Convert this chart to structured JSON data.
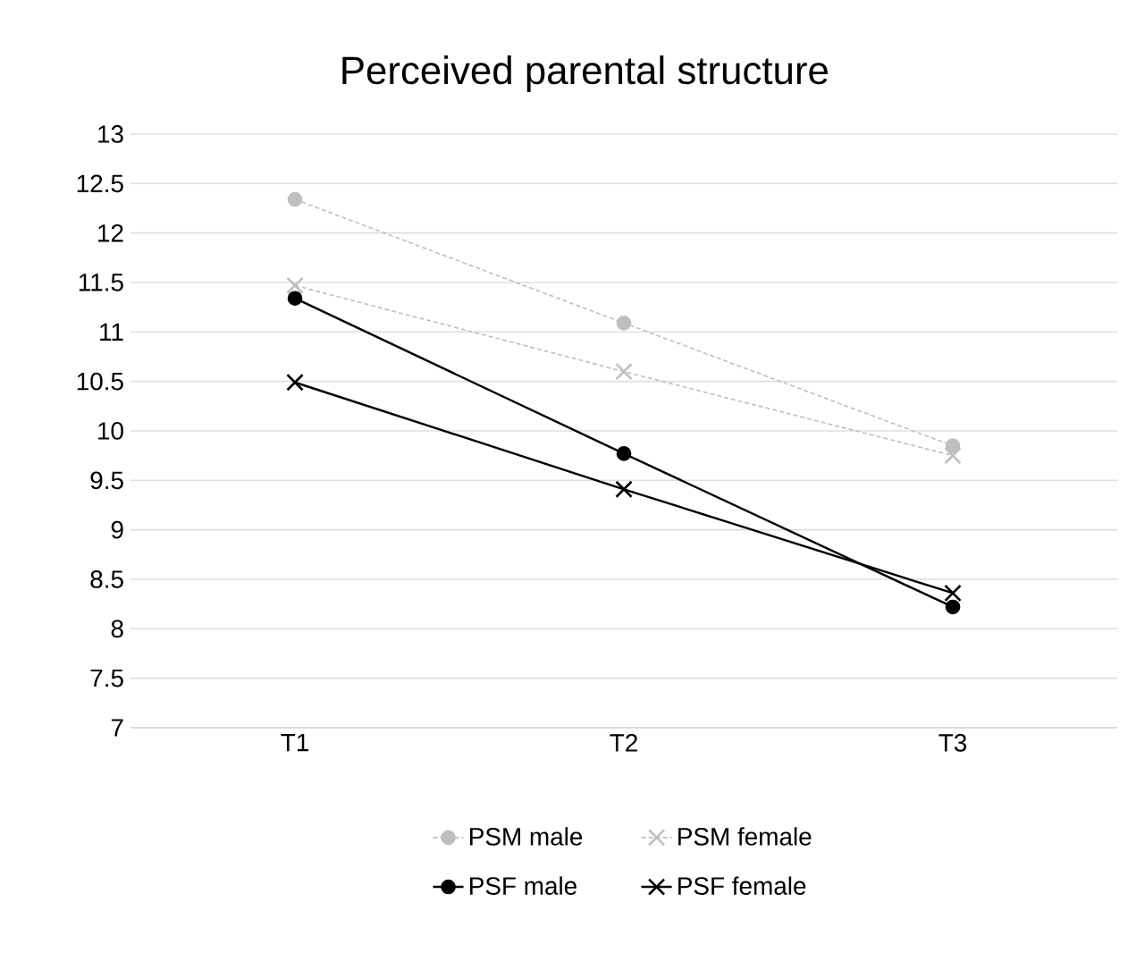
{
  "chart_data": {
    "type": "line",
    "title": "Perceived parental structure",
    "categories": [
      "T1",
      "T2",
      "T3"
    ],
    "series": [
      {
        "name": "PSM male",
        "color": "#bfbfbf",
        "marker": "circle",
        "line_style": "dashed",
        "values": [
          12.34,
          11.09,
          9.85
        ]
      },
      {
        "name": "PSM female",
        "color": "#bfbfbf",
        "marker": "cross",
        "line_style": "dashed",
        "values": [
          11.47,
          10.6,
          9.75
        ]
      },
      {
        "name": "PSF male",
        "color": "#000000",
        "marker": "circle",
        "line_style": "solid",
        "values": [
          11.34,
          9.77,
          8.22
        ]
      },
      {
        "name": "PSF female",
        "color": "#000000",
        "marker": "cross",
        "line_style": "solid",
        "values": [
          10.49,
          9.41,
          8.36
        ]
      }
    ],
    "ylim": [
      7,
      13
    ],
    "yticks": [
      7,
      7.5,
      8,
      8.5,
      9,
      9.5,
      10,
      10.5,
      11,
      11.5,
      12,
      12.5,
      13
    ],
    "grid": "y",
    "legend": "bottom"
  }
}
